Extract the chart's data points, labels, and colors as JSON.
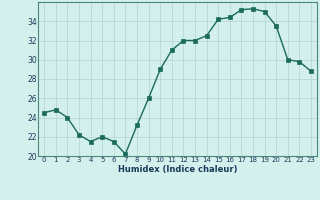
{
  "x": [
    0,
    1,
    2,
    3,
    4,
    5,
    6,
    7,
    8,
    9,
    10,
    11,
    12,
    13,
    14,
    15,
    16,
    17,
    18,
    19,
    20,
    21,
    22,
    23
  ],
  "y": [
    24.5,
    24.8,
    24.0,
    22.2,
    21.5,
    22.0,
    21.5,
    20.2,
    23.2,
    26.0,
    29.0,
    31.0,
    32.0,
    32.0,
    32.5,
    34.2,
    34.4,
    35.2,
    35.3,
    35.0,
    33.5,
    30.0,
    29.8,
    28.8
  ],
  "xlabel": "Humidex (Indice chaleur)",
  "xlim": [
    -0.5,
    23.5
  ],
  "ylim": [
    20,
    36
  ],
  "yticks": [
    20,
    22,
    24,
    26,
    28,
    30,
    32,
    34
  ],
  "xticks": [
    0,
    1,
    2,
    3,
    4,
    5,
    6,
    7,
    8,
    9,
    10,
    11,
    12,
    13,
    14,
    15,
    16,
    17,
    18,
    19,
    20,
    21,
    22,
    23
  ],
  "line_color": "#1a6b5a",
  "marker_size": 2.5,
  "bg_color": "#d4f0ec",
  "grid_color": "#b8d8d4",
  "label_color": "#1a3a5c",
  "xlabel_color": "#1a3a5c"
}
